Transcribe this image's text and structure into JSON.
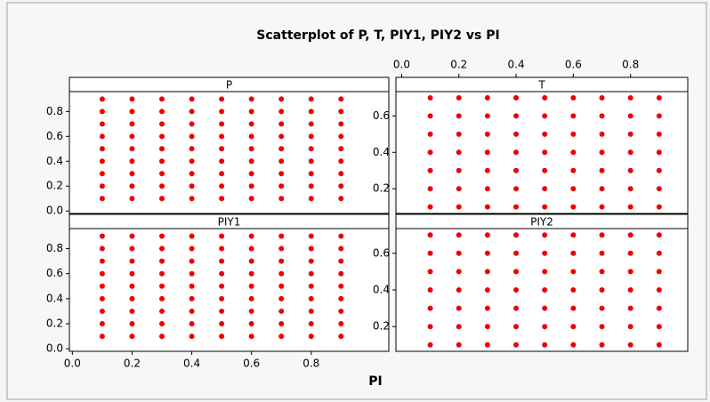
{
  "title": "Scatterplot of P, T, PIY1, PIY2 vs PI",
  "xlabel": "PI",
  "chart_data": [
    {
      "type": "scatter",
      "title": "P",
      "color": "#ee0000",
      "xlim": [
        -0.01,
        1.06
      ],
      "ylim": [
        -0.02,
        0.96
      ],
      "yticks": [
        {
          "value": 0,
          "label": "0.0"
        },
        0.2,
        0.4,
        0.6,
        0.8
      ],
      "x": [
        0.1,
        0.1,
        0.1,
        0.1,
        0.1,
        0.1,
        0.1,
        0.1,
        0.1,
        0.2,
        0.2,
        0.2,
        0.2,
        0.2,
        0.2,
        0.2,
        0.2,
        0.2,
        0.3,
        0.3,
        0.3,
        0.3,
        0.3,
        0.3,
        0.3,
        0.3,
        0.3,
        0.4,
        0.4,
        0.4,
        0.4,
        0.4,
        0.4,
        0.4,
        0.4,
        0.4,
        0.5,
        0.5,
        0.5,
        0.5,
        0.5,
        0.5,
        0.5,
        0.5,
        0.5,
        0.6,
        0.6,
        0.6,
        0.6,
        0.6,
        0.6,
        0.6,
        0.6,
        0.6,
        0.7,
        0.7,
        0.7,
        0.7,
        0.7,
        0.7,
        0.7,
        0.7,
        0.7,
        0.8,
        0.8,
        0.8,
        0.8,
        0.8,
        0.8,
        0.8,
        0.8,
        0.8,
        0.9,
        0.9,
        0.9,
        0.9,
        0.9,
        0.9,
        0.9,
        0.9,
        0.9
      ],
      "values": [
        0.1,
        0.2,
        0.3,
        0.4,
        0.5,
        0.6,
        0.7,
        0.8,
        0.9,
        0.1,
        0.2,
        0.3,
        0.4,
        0.5,
        0.6,
        0.7,
        0.8,
        0.9,
        0.1,
        0.2,
        0.3,
        0.4,
        0.5,
        0.6,
        0.7,
        0.8,
        0.9,
        0.1,
        0.2,
        0.3,
        0.4,
        0.5,
        0.6,
        0.7,
        0.8,
        0.9,
        0.1,
        0.2,
        0.3,
        0.4,
        0.5,
        0.6,
        0.7,
        0.8,
        0.9,
        0.1,
        0.2,
        0.3,
        0.4,
        0.5,
        0.6,
        0.7,
        0.8,
        0.9,
        0.1,
        0.2,
        0.3,
        0.4,
        0.5,
        0.6,
        0.7,
        0.8,
        0.9,
        0.1,
        0.2,
        0.3,
        0.4,
        0.5,
        0.6,
        0.7,
        0.8,
        0.9,
        0.1,
        0.2,
        0.3,
        0.4,
        0.5,
        0.6,
        0.7,
        0.8,
        0.9
      ]
    },
    {
      "type": "scatter",
      "title": "T",
      "color": "#ee0000",
      "xlim": [
        -0.02,
        1.0
      ],
      "ylim": [
        0.064,
        0.734
      ],
      "xticks": [
        {
          "value": 0,
          "label": "0.0"
        },
        0.2,
        0.4,
        0.6,
        0.8
      ],
      "yticks": [
        0.2,
        0.4,
        0.6
      ],
      "x": [
        0.1,
        0.1,
        0.1,
        0.1,
        0.1,
        0.1,
        0.1,
        0.2,
        0.2,
        0.2,
        0.2,
        0.2,
        0.2,
        0.2,
        0.3,
        0.3,
        0.3,
        0.3,
        0.3,
        0.3,
        0.3,
        0.4,
        0.4,
        0.4,
        0.4,
        0.4,
        0.4,
        0.4,
        0.5,
        0.5,
        0.5,
        0.5,
        0.5,
        0.5,
        0.5,
        0.6,
        0.6,
        0.6,
        0.6,
        0.6,
        0.6,
        0.6,
        0.7,
        0.7,
        0.7,
        0.7,
        0.7,
        0.7,
        0.7,
        0.8,
        0.8,
        0.8,
        0.8,
        0.8,
        0.8,
        0.8,
        0.9,
        0.9,
        0.9,
        0.9,
        0.9,
        0.9,
        0.9
      ],
      "values": [
        0.1,
        0.2,
        0.3,
        0.4,
        0.5,
        0.6,
        0.7,
        0.1,
        0.2,
        0.3,
        0.4,
        0.5,
        0.6,
        0.7,
        0.1,
        0.2,
        0.3,
        0.4,
        0.5,
        0.6,
        0.7,
        0.1,
        0.2,
        0.3,
        0.4,
        0.5,
        0.6,
        0.7,
        0.1,
        0.2,
        0.3,
        0.4,
        0.5,
        0.6,
        0.7,
        0.1,
        0.2,
        0.3,
        0.4,
        0.5,
        0.6,
        0.7,
        0.1,
        0.2,
        0.3,
        0.4,
        0.5,
        0.6,
        0.7,
        0.1,
        0.2,
        0.3,
        0.4,
        0.5,
        0.6,
        0.7,
        0.1,
        0.2,
        0.3,
        0.4,
        0.5,
        0.6,
        0.7
      ]
    },
    {
      "type": "scatter",
      "title": "PIY1",
      "color": "#ee0000",
      "xlim": [
        -0.01,
        1.06
      ],
      "ylim": [
        -0.02,
        0.96
      ],
      "xticks": [
        {
          "value": 0,
          "label": "0.0"
        },
        0.2,
        0.4,
        0.6,
        0.8
      ],
      "yticks": [
        {
          "value": 0,
          "label": "0.0"
        },
        0.2,
        0.4,
        0.6,
        0.8
      ],
      "x": [
        0.1,
        0.1,
        0.1,
        0.1,
        0.1,
        0.1,
        0.1,
        0.1,
        0.1,
        0.2,
        0.2,
        0.2,
        0.2,
        0.2,
        0.2,
        0.2,
        0.2,
        0.2,
        0.3,
        0.3,
        0.3,
        0.3,
        0.3,
        0.3,
        0.3,
        0.3,
        0.3,
        0.4,
        0.4,
        0.4,
        0.4,
        0.4,
        0.4,
        0.4,
        0.4,
        0.4,
        0.5,
        0.5,
        0.5,
        0.5,
        0.5,
        0.5,
        0.5,
        0.5,
        0.5,
        0.6,
        0.6,
        0.6,
        0.6,
        0.6,
        0.6,
        0.6,
        0.6,
        0.6,
        0.7,
        0.7,
        0.7,
        0.7,
        0.7,
        0.7,
        0.7,
        0.7,
        0.7,
        0.8,
        0.8,
        0.8,
        0.8,
        0.8,
        0.8,
        0.8,
        0.8,
        0.8,
        0.9,
        0.9,
        0.9,
        0.9,
        0.9,
        0.9,
        0.9,
        0.9,
        0.9
      ],
      "values": [
        0.1,
        0.2,
        0.3,
        0.4,
        0.5,
        0.6,
        0.7,
        0.8,
        0.9,
        0.1,
        0.2,
        0.3,
        0.4,
        0.5,
        0.6,
        0.7,
        0.8,
        0.9,
        0.1,
        0.2,
        0.3,
        0.4,
        0.5,
        0.6,
        0.7,
        0.8,
        0.9,
        0.1,
        0.2,
        0.3,
        0.4,
        0.5,
        0.6,
        0.7,
        0.8,
        0.9,
        0.1,
        0.2,
        0.3,
        0.4,
        0.5,
        0.6,
        0.7,
        0.8,
        0.9,
        0.1,
        0.2,
        0.3,
        0.4,
        0.5,
        0.6,
        0.7,
        0.8,
        0.9,
        0.1,
        0.2,
        0.3,
        0.4,
        0.5,
        0.6,
        0.7,
        0.8,
        0.9,
        0.1,
        0.2,
        0.3,
        0.4,
        0.5,
        0.6,
        0.7,
        0.8,
        0.9,
        0.1,
        0.2,
        0.3,
        0.4,
        0.5,
        0.6,
        0.7,
        0.8,
        0.9
      ]
    },
    {
      "type": "scatter",
      "title": "PIY2",
      "color": "#ee0000",
      "xlim": [
        -0.02,
        1.0
      ],
      "ylim": [
        0.065,
        0.735
      ],
      "yticks": [
        0.2,
        0.4,
        0.6
      ],
      "x": [
        0.1,
        0.1,
        0.1,
        0.1,
        0.1,
        0.1,
        0.1,
        0.2,
        0.2,
        0.2,
        0.2,
        0.2,
        0.2,
        0.2,
        0.3,
        0.3,
        0.3,
        0.3,
        0.3,
        0.3,
        0.3,
        0.4,
        0.4,
        0.4,
        0.4,
        0.4,
        0.4,
        0.4,
        0.5,
        0.5,
        0.5,
        0.5,
        0.5,
        0.5,
        0.5,
        0.6,
        0.6,
        0.6,
        0.6,
        0.6,
        0.6,
        0.6,
        0.7,
        0.7,
        0.7,
        0.7,
        0.7,
        0.7,
        0.7,
        0.8,
        0.8,
        0.8,
        0.8,
        0.8,
        0.8,
        0.8,
        0.9,
        0.9,
        0.9,
        0.9,
        0.9,
        0.9,
        0.9
      ],
      "values": [
        0.1,
        0.2,
        0.3,
        0.4,
        0.5,
        0.6,
        0.7,
        0.1,
        0.2,
        0.3,
        0.4,
        0.5,
        0.6,
        0.7,
        0.1,
        0.2,
        0.3,
        0.4,
        0.5,
        0.6,
        0.7,
        0.1,
        0.2,
        0.3,
        0.4,
        0.5,
        0.6,
        0.7,
        0.1,
        0.2,
        0.3,
        0.4,
        0.5,
        0.6,
        0.7,
        0.1,
        0.2,
        0.3,
        0.4,
        0.5,
        0.6,
        0.7,
        0.1,
        0.2,
        0.3,
        0.4,
        0.5,
        0.6,
        0.7,
        0.1,
        0.2,
        0.3,
        0.4,
        0.5,
        0.6,
        0.7,
        0.1,
        0.2,
        0.3,
        0.4,
        0.5,
        0.6,
        0.7
      ]
    }
  ]
}
